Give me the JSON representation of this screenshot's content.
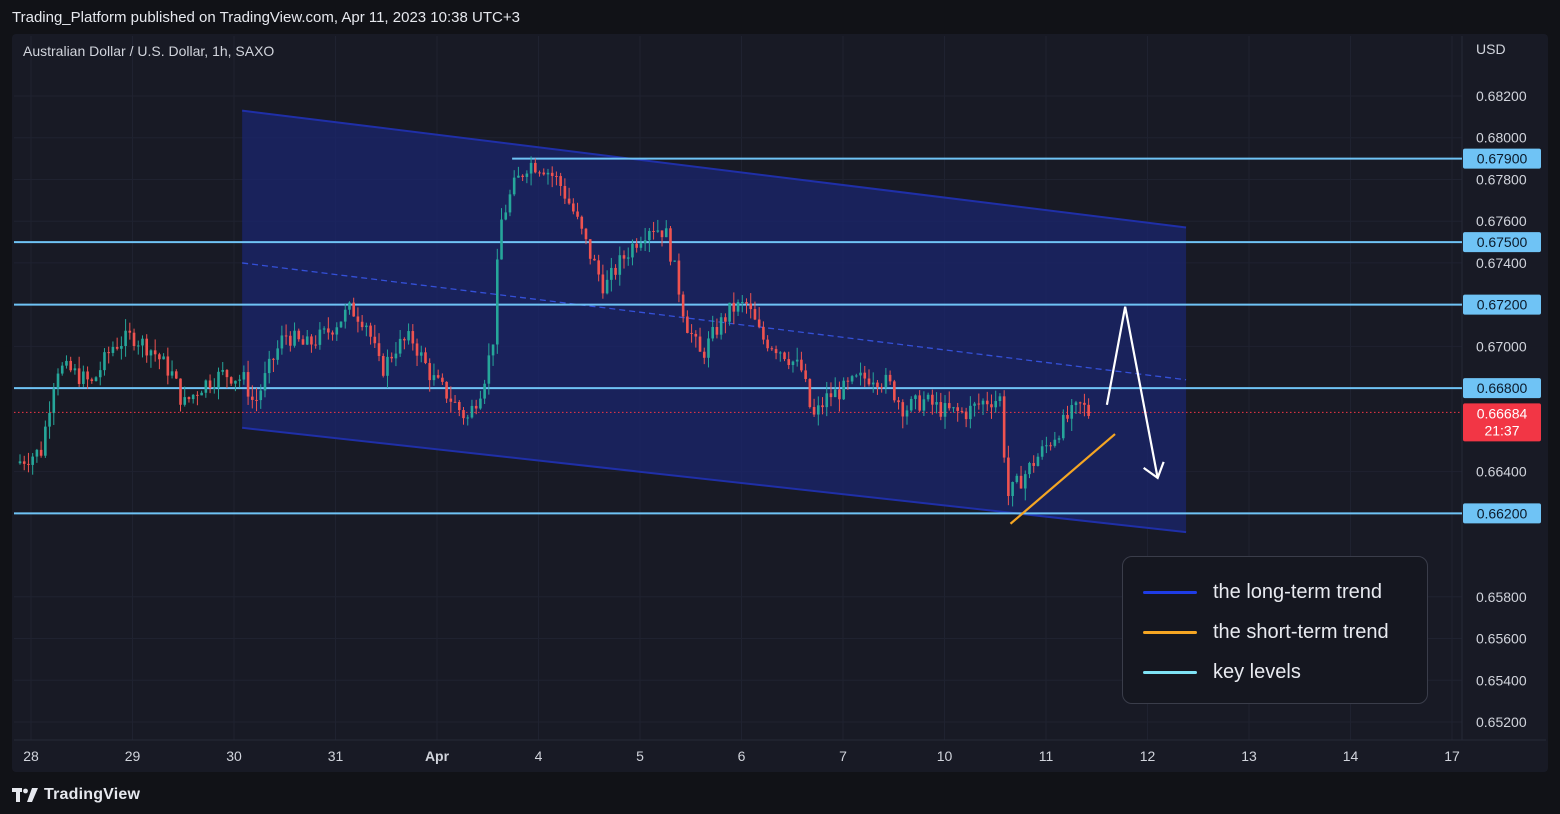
{
  "header": {
    "published": "Trading_Platform published on TradingView.com, Apr 11, 2023 10:38 UTC+3"
  },
  "symbol": {
    "title": "Australian Dollar / U.S. Dollar, 1h, SAXO"
  },
  "footer": {
    "brand": "TradingView",
    "logo_icon": "tradingview-logo-icon"
  },
  "colors": {
    "background": "#111217",
    "pane": "#181a25",
    "channel_fill": "#1a2670",
    "channel_line": "#1f2fa8",
    "key_level": "#6fc3f5",
    "short_trend": "#f5a623",
    "candle_up": "#26a69a",
    "candle_down": "#ef5350",
    "last_price_bg": "#f23645",
    "arrow": "#ffffff"
  },
  "legend": {
    "items": [
      {
        "label": "the long-term trend",
        "color": "#1e3ce6"
      },
      {
        "label": "the short-term trend",
        "color": "#f5a623"
      },
      {
        "label": "key levels",
        "color": "#7fe3f5"
      }
    ]
  },
  "chart_data": {
    "type": "candlestick",
    "title": "Australian Dollar / U.S. Dollar, 1h, SAXO",
    "currency_label": "USD",
    "y_ticks": [
      "0.68200",
      "0.68000",
      "0.67800",
      "0.67600",
      "0.67400",
      "0.67000",
      "0.66400",
      "0.65800",
      "0.65600",
      "0.65400",
      "0.65200"
    ],
    "ylim": [
      0.6512,
      0.6835
    ],
    "x_ticks": [
      "28",
      "29",
      "30",
      "31",
      "Apr",
      "4",
      "5",
      "6",
      "7",
      "10",
      "11",
      "12",
      "13",
      "14",
      "17"
    ],
    "x_tick_days": [
      0,
      1,
      2,
      3,
      4,
      5,
      6,
      7,
      8,
      9,
      10,
      11,
      12,
      13,
      14
    ],
    "key_levels": [
      {
        "value": 0.679,
        "label": "0.67900"
      },
      {
        "value": 0.675,
        "label": "0.67500"
      },
      {
        "value": 0.672,
        "label": "0.67200"
      },
      {
        "value": 0.668,
        "label": "0.66800"
      },
      {
        "value": 0.662,
        "label": "0.66200"
      }
    ],
    "last_price": {
      "value": 0.66684,
      "label": "0.66684",
      "countdown": "21:37"
    },
    "price_path": [
      [
        -0.15,
        0.6644
      ],
      [
        0.1,
        0.665
      ],
      [
        0.25,
        0.669
      ],
      [
        0.4,
        0.6688
      ],
      [
        0.6,
        0.6682
      ],
      [
        0.8,
        0.67
      ],
      [
        1.0,
        0.6705
      ],
      [
        1.2,
        0.6698
      ],
      [
        1.4,
        0.6686
      ],
      [
        1.5,
        0.6672
      ],
      [
        1.7,
        0.6682
      ],
      [
        1.9,
        0.6687
      ],
      [
        2.1,
        0.6684
      ],
      [
        2.2,
        0.6672
      ],
      [
        2.35,
        0.669
      ],
      [
        2.5,
        0.6706
      ],
      [
        2.7,
        0.67
      ],
      [
        2.9,
        0.6706
      ],
      [
        3.15,
        0.6718
      ],
      [
        3.3,
        0.6712
      ],
      [
        3.45,
        0.6688
      ],
      [
        3.6,
        0.67
      ],
      [
        3.75,
        0.6704
      ],
      [
        3.95,
        0.6685
      ],
      [
        4.1,
        0.6677
      ],
      [
        4.3,
        0.6665
      ],
      [
        4.45,
        0.6682
      ],
      [
        4.55,
        0.6702
      ],
      [
        4.62,
        0.6758
      ],
      [
        4.75,
        0.6776
      ],
      [
        4.9,
        0.6788
      ],
      [
        5.05,
        0.6786
      ],
      [
        5.2,
        0.6779
      ],
      [
        5.35,
        0.6764
      ],
      [
        5.5,
        0.6745
      ],
      [
        5.65,
        0.6728
      ],
      [
        5.8,
        0.674
      ],
      [
        5.95,
        0.675
      ],
      [
        6.1,
        0.6758
      ],
      [
        6.25,
        0.6755
      ],
      [
        6.35,
        0.6735
      ],
      [
        6.45,
        0.6712
      ],
      [
        6.6,
        0.6695
      ],
      [
        6.75,
        0.6708
      ],
      [
        6.9,
        0.6718
      ],
      [
        7.05,
        0.672
      ],
      [
        7.2,
        0.6704
      ],
      [
        7.4,
        0.6698
      ],
      [
        7.6,
        0.6688
      ],
      [
        7.7,
        0.6665
      ],
      [
        7.85,
        0.6676
      ],
      [
        8.0,
        0.6679
      ],
      [
        8.15,
        0.6684
      ],
      [
        8.3,
        0.6686
      ],
      [
        8.45,
        0.6682
      ],
      [
        8.6,
        0.667
      ],
      [
        8.8,
        0.6674
      ],
      [
        9.0,
        0.6669
      ],
      [
        9.2,
        0.6668
      ],
      [
        9.4,
        0.6674
      ],
      [
        9.55,
        0.6675
      ],
      [
        9.62,
        0.6628
      ],
      [
        9.75,
        0.6636
      ],
      [
        9.9,
        0.6646
      ],
      [
        10.05,
        0.6655
      ],
      [
        10.2,
        0.6665
      ],
      [
        10.35,
        0.6672
      ],
      [
        10.42,
        0.6668
      ]
    ],
    "drawings": {
      "channel_upper": [
        [
          2.08,
          0.6813
        ],
        [
          11.38,
          0.6757
        ]
      ],
      "channel_lower": [
        [
          2.08,
          0.6661
        ],
        [
          11.38,
          0.6611
        ]
      ],
      "channel_mid": [
        [
          2.08,
          0.674
        ],
        [
          11.38,
          0.6684
        ]
      ],
      "short_trend_line": [
        [
          9.65,
          0.6615
        ],
        [
          10.68,
          0.6658
        ]
      ],
      "forecast_arrow": [
        [
          10.6,
          0.6672
        ],
        [
          10.78,
          0.6719
        ],
        [
          11.1,
          0.6637
        ]
      ]
    }
  }
}
